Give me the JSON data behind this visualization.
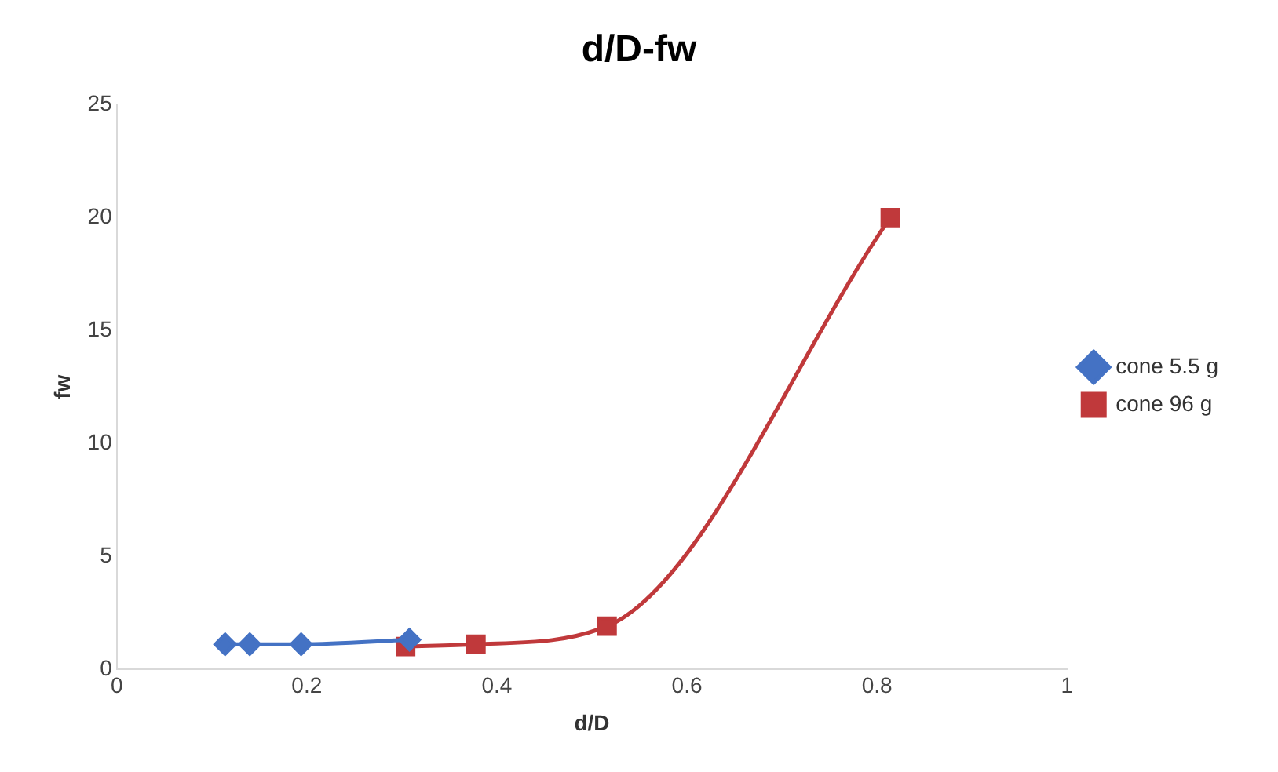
{
  "chart_data": {
    "type": "line",
    "title": "d/D-fw",
    "xlabel": "d/D",
    "ylabel": "fw",
    "xlim": [
      0,
      1
    ],
    "xticks": [
      0,
      0.2,
      0.4,
      0.6,
      0.8,
      1
    ],
    "ylim": [
      0,
      25
    ],
    "yticks": [
      0,
      5,
      10,
      15,
      20,
      25
    ],
    "grid": false,
    "legend": "right",
    "line_style": "solid",
    "series": [
      {
        "name": "cone 5.5 g",
        "color": "#4472c4",
        "marker": "diamond",
        "x": [
          0.114,
          0.14,
          0.194,
          0.308
        ],
        "values": [
          1.1,
          1.1,
          1.1,
          1.3
        ]
      },
      {
        "name": "cone 96 g",
        "color": "#c0393b",
        "marker": "square",
        "x": [
          0.304,
          0.378,
          0.516,
          0.814
        ],
        "values": [
          1.0,
          1.1,
          1.9,
          20
        ]
      }
    ]
  }
}
